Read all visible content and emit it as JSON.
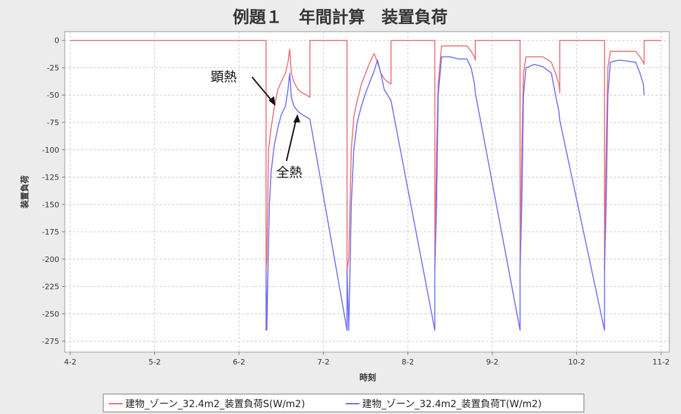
{
  "chart_data": {
    "type": "line",
    "title": "例題１　年間計算　装置負荷",
    "xlabel": "時刻",
    "ylabel": "装置負荷",
    "xlim": [
      0,
      7
    ],
    "ylim": [
      -285,
      8
    ],
    "x_ticks": [
      {
        "v": 0,
        "label": "4-2"
      },
      {
        "v": 1,
        "label": "5-2"
      },
      {
        "v": 2,
        "label": "6-2"
      },
      {
        "v": 3,
        "label": "7-2"
      },
      {
        "v": 4,
        "label": "8-2"
      },
      {
        "v": 5,
        "label": "9-2"
      },
      {
        "v": 6,
        "label": "10-2"
      },
      {
        "v": 7,
        "label": "11-2"
      }
    ],
    "y_ticks": [
      0,
      -25,
      -50,
      -75,
      -100,
      -125,
      -150,
      -175,
      -200,
      -225,
      -250,
      -275
    ],
    "grid": true,
    "legend_position": "bottom",
    "annotations": [
      {
        "text": "顕熱",
        "target_series": 0
      },
      {
        "text": "全熱",
        "target_series": 1
      }
    ],
    "series": [
      {
        "name": "建物_ゾーン_32.4m2_装置負荷S(W/m2)",
        "color": "#e8707a",
        "x": [
          0,
          2.32,
          2.32,
          2.33,
          2.35,
          2.38,
          2.42,
          2.46,
          2.5,
          2.55,
          2.58,
          2.6,
          2.62,
          2.65,
          2.7,
          2.75,
          2.8,
          2.84,
          2.84,
          3.28,
          3.28,
          3.3,
          3.33,
          3.36,
          3.4,
          3.45,
          3.5,
          3.55,
          3.6,
          3.64,
          3.68,
          3.72,
          3.76,
          3.8,
          3.8,
          4.32,
          4.32,
          4.34,
          4.36,
          4.4,
          4.5,
          4.6,
          4.7,
          4.75,
          4.79,
          4.8,
          4.8,
          5.33,
          5.33,
          5.35,
          5.37,
          5.4,
          5.5,
          5.6,
          5.7,
          5.75,
          5.79,
          5.8,
          5.8,
          6.33,
          6.33,
          6.35,
          6.37,
          6.4,
          6.5,
          6.6,
          6.7,
          6.75,
          6.79,
          6.8,
          6.8,
          7
        ],
        "y": [
          0,
          0,
          -210,
          -200,
          -100,
          -80,
          -60,
          -45,
          -38,
          -30,
          -20,
          -8,
          -30,
          -38,
          -45,
          -48,
          -50,
          -52,
          0,
          0,
          -210,
          -200,
          -100,
          -70,
          -55,
          -40,
          -30,
          -20,
          -12,
          -20,
          -30,
          -35,
          -38,
          -40,
          0,
          0,
          -210,
          -100,
          -40,
          -5,
          -5,
          -5,
          -5,
          -10,
          -15,
          -18,
          0,
          0,
          -210,
          -100,
          -30,
          -15,
          -15,
          -15,
          -20,
          -30,
          -40,
          -48,
          0,
          0,
          -210,
          -100,
          -25,
          -10,
          -10,
          -10,
          -10,
          -15,
          -20,
          -22,
          0,
          0
        ]
      },
      {
        "name": "建物_ゾーン_32.4m2_装置負荷T(W/m2)",
        "color": "#6f6ff0",
        "x": [
          2.32,
          2.32,
          2.33,
          2.34,
          2.36,
          2.38,
          2.42,
          2.46,
          2.5,
          2.55,
          2.58,
          2.6,
          2.62,
          2.65,
          2.7,
          2.75,
          2.8,
          2.84,
          3.28,
          3.28,
          3.3,
          3.33,
          3.36,
          3.4,
          3.45,
          3.5,
          3.55,
          3.6,
          3.64,
          3.68,
          3.72,
          3.76,
          3.8,
          4.32,
          4.32,
          4.34,
          4.36,
          4.4,
          4.5,
          4.6,
          4.7,
          4.75,
          4.79,
          4.8,
          5.33,
          5.33,
          5.35,
          5.37,
          5.4,
          5.5,
          5.6,
          5.7,
          5.75,
          5.79,
          5.8,
          6.33,
          6.33,
          6.35,
          6.37,
          6.4,
          6.5,
          6.6,
          6.7,
          6.75,
          6.79,
          6.8
        ],
        "y": [
          -265,
          -210,
          -265,
          -220,
          -150,
          -120,
          -95,
          -80,
          -68,
          -60,
          -45,
          -30,
          -52,
          -60,
          -65,
          -68,
          -70,
          -72,
          -265,
          -210,
          -265,
          -150,
          -100,
          -75,
          -60,
          -48,
          -38,
          -28,
          -18,
          -30,
          -45,
          -50,
          -55,
          -265,
          -210,
          -150,
          -50,
          -15,
          -15,
          -17,
          -17,
          -25,
          -40,
          -48,
          -265,
          -210,
          -150,
          -50,
          -25,
          -22,
          -24,
          -30,
          -50,
          -65,
          -73,
          -265,
          -210,
          -150,
          -50,
          -20,
          -18,
          -19,
          -20,
          -30,
          -40,
          -50
        ]
      }
    ]
  }
}
